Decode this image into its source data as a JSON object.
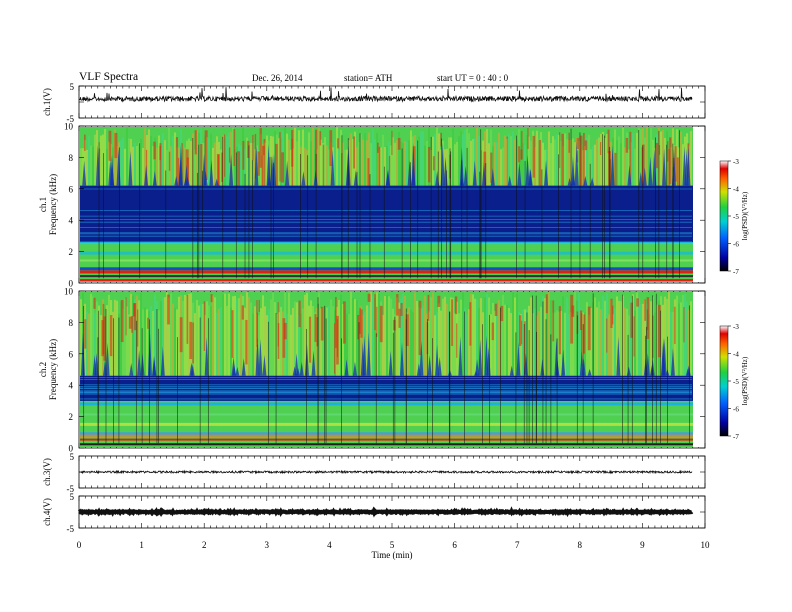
{
  "header": {
    "title": "VLF  Spectra",
    "date": "Dec. 26, 2014",
    "station": "station= ATH",
    "start": "start  UT =  0 : 40 : 0"
  },
  "colors": {
    "spectrogram_background": "#3cc83c",
    "noise_band": "#0a1e8c",
    "hot": "#e02010",
    "trace": "#111111"
  },
  "chart_data": [
    {
      "type": "line",
      "name": "ch1-waveform",
      "ylabel": "ch.1(V)",
      "ylim": [
        -5,
        5
      ],
      "yticks": [
        "5",
        "-5"
      ],
      "xlim": [
        0,
        10
      ],
      "trace_end_min": 9.8,
      "description_level": "noisy signal near +1 V"
    },
    {
      "type": "heatmap",
      "name": "ch1-spectrogram",
      "ylabel": "ch.1\nFrequency (kHz)",
      "ylim": [
        0,
        10
      ],
      "yticks": [
        "0",
        "2",
        "4",
        "6",
        "8",
        "10"
      ],
      "xlim": [
        0,
        10
      ],
      "colorbar": {
        "label": "log(PSD)(V²/Hz)",
        "range": [
          -7,
          -3
        ],
        "ticks": [
          "-3",
          "-4",
          "-5",
          "-6",
          "-7"
        ]
      }
    },
    {
      "type": "heatmap",
      "name": "ch2-spectrogram",
      "ylabel": "ch.2\nFrequency (kHz)",
      "ylim": [
        0,
        10
      ],
      "yticks": [
        "0",
        "2",
        "4",
        "6",
        "8",
        "10"
      ],
      "xlim": [
        0,
        10
      ],
      "colorbar": {
        "label": "log(PSD)(V²/Hz)",
        "range": [
          -7,
          -3
        ],
        "ticks": [
          "-3",
          "-4",
          "-5",
          "-6",
          "-7"
        ]
      }
    },
    {
      "type": "line",
      "name": "ch3-waveform",
      "ylabel": "ch.3(V)",
      "ylim": [
        -5,
        5
      ],
      "yticks": [
        "5",
        "-5"
      ],
      "xlim": [
        0,
        10
      ],
      "trace_end_min": 9.8
    },
    {
      "type": "line",
      "name": "ch4-waveform",
      "ylabel": "ch.4(V)",
      "ylim": [
        -5,
        5
      ],
      "yticks": [
        "5",
        "-5"
      ],
      "xlim": [
        0,
        10
      ],
      "trace_end_min": 9.8
    }
  ],
  "xaxis": {
    "label": "Time  (min)",
    "ticks": [
      "0",
      "1",
      "2",
      "3",
      "4",
      "5",
      "6",
      "7",
      "8",
      "9",
      "10"
    ]
  }
}
